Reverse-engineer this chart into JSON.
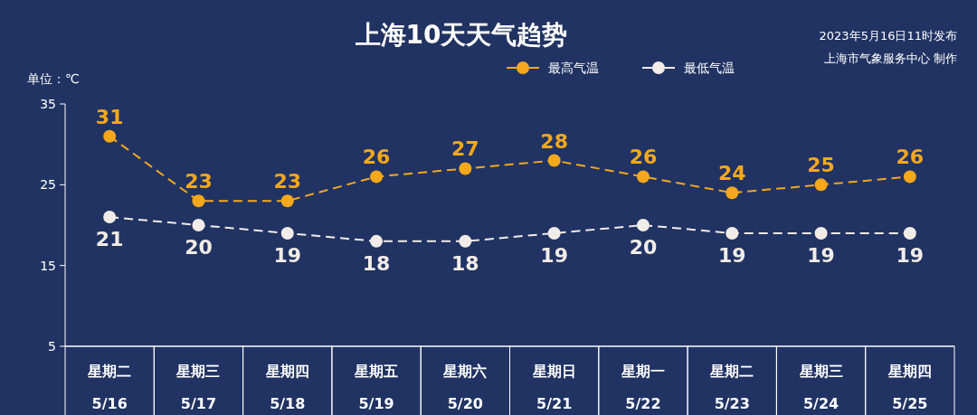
{
  "chart_data": {
    "type": "line",
    "title": "上海10天天气趋势",
    "ylabel": "单位：℃",
    "annotations": [
      "2023年5月16日11时发布",
      "上海市气象服务中心 制作"
    ],
    "categories": [
      "星期二\n5/16",
      "星期三\n5/17",
      "星期四\n5/18",
      "星期五\n5/19",
      "星期六\n5/20",
      "星期日\n5/21",
      "星期一\n5/22",
      "星期二\n5/23",
      "星期三\n5/24",
      "星期四\n5/25"
    ],
    "series": [
      {
        "name": "最高气温",
        "color": "#f5a81c",
        "values": [
          31,
          23,
          23,
          26,
          27,
          28,
          26,
          24,
          25,
          26
        ]
      },
      {
        "name": "最低气温",
        "color": "#f2ece8",
        "values": [
          21,
          20,
          19,
          18,
          18,
          19,
          20,
          19,
          19,
          19
        ]
      }
    ],
    "ylim": [
      5,
      35
    ],
    "yticks": [
      35,
      25,
      15,
      5
    ],
    "data_labels": true,
    "legend": "top",
    "marker": "circle",
    "line_style": "dashed"
  }
}
